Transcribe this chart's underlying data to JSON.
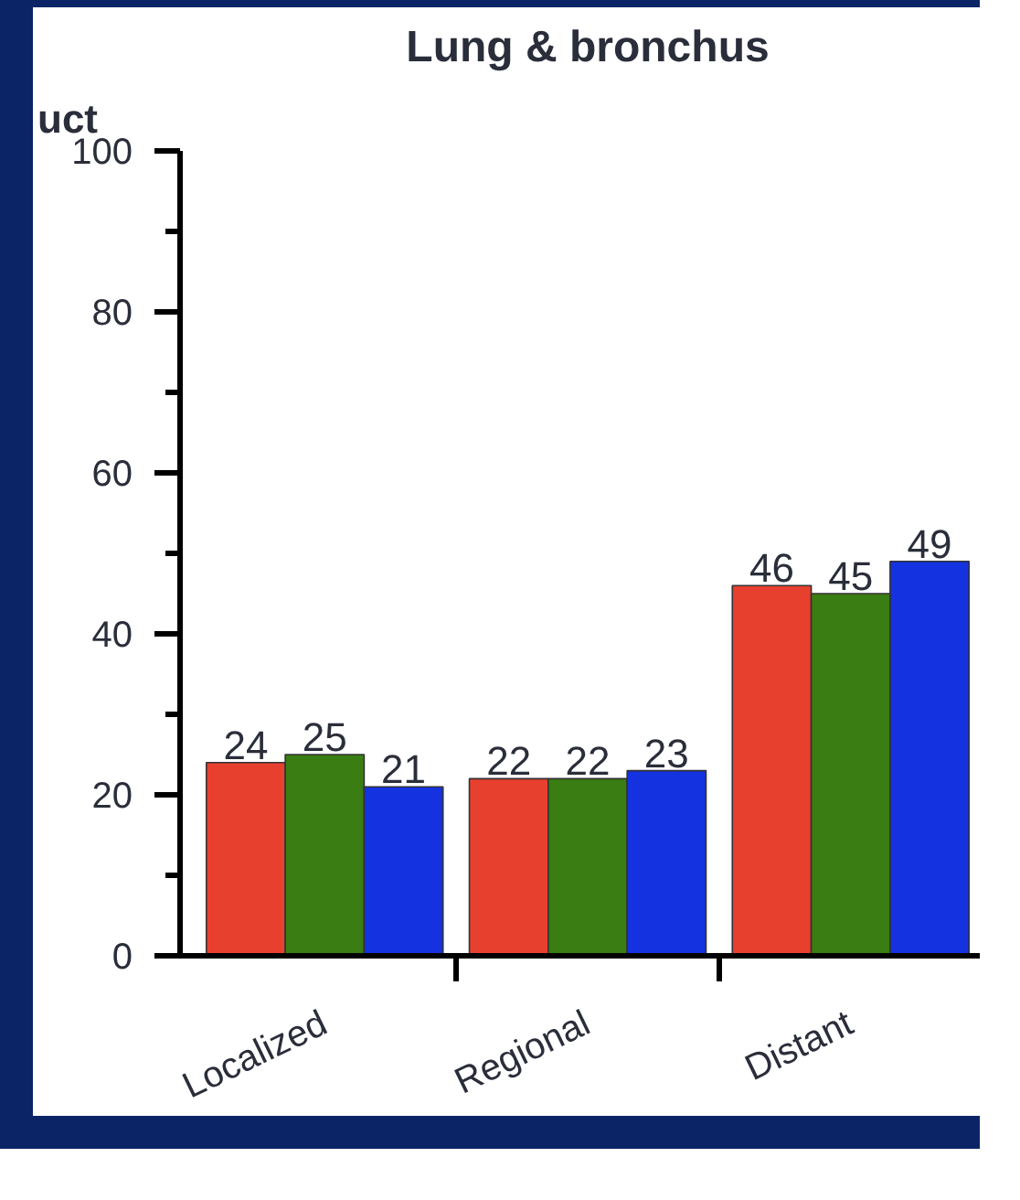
{
  "chart_data": {
    "type": "bar",
    "title": "Lung & bronchus",
    "annotations": [
      "uct"
    ],
    "categories": [
      "Localized",
      "Regional",
      "Distant"
    ],
    "series": [
      {
        "color": "#e8402f",
        "values": [
          24,
          22,
          46
        ]
      },
      {
        "color": "#3a7d12",
        "values": [
          25,
          22,
          45
        ]
      },
      {
        "color": "#1432e0",
        "values": [
          21,
          23,
          49
        ]
      }
    ],
    "ylim": [
      0,
      100
    ],
    "yticks": [
      0,
      20,
      40,
      60,
      80,
      100
    ],
    "data_labels": true,
    "grid": false
  }
}
